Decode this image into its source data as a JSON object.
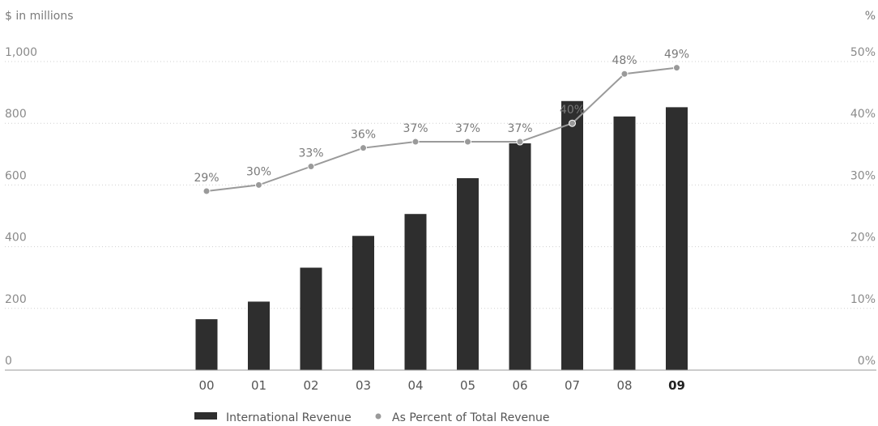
{
  "chart_data": {
    "type": "bar",
    "categories": [
      "00",
      "01",
      "02",
      "03",
      "04",
      "05",
      "06",
      "07",
      "08",
      "09"
    ],
    "highlight_category": "09",
    "series": [
      {
        "name": "International Revenue",
        "kind": "bar",
        "axis": "left",
        "color": "#2e2e2e",
        "values": [
          165,
          222,
          332,
          435,
          506,
          622,
          735,
          872,
          822,
          852
        ]
      },
      {
        "name": "As Percent of Total Revenue",
        "kind": "line",
        "axis": "right",
        "color": "#9a9a9a",
        "values": [
          29,
          30,
          33,
          36,
          37,
          37,
          37,
          40,
          48,
          49
        ],
        "labels": [
          "29%",
          "30%",
          "33%",
          "36%",
          "37%",
          "37%",
          "37%",
          "40%",
          "48%",
          "49%"
        ]
      }
    ],
    "ylabel": "$ in millions",
    "y2label": "%",
    "ylim": [
      0,
      1000
    ],
    "y2lim": [
      0,
      50
    ],
    "yticks": [
      0,
      200,
      400,
      600,
      800,
      1000
    ],
    "ytick_labels": [
      "0",
      "200",
      "400",
      "600",
      "800",
      "1,000"
    ],
    "y2ticks": [
      0,
      10,
      20,
      30,
      40,
      50
    ],
    "y2tick_labels": [
      "0%",
      "10%",
      "20%",
      "30%",
      "40%",
      "50%"
    ],
    "grid": true,
    "legend_position": "bottom"
  }
}
